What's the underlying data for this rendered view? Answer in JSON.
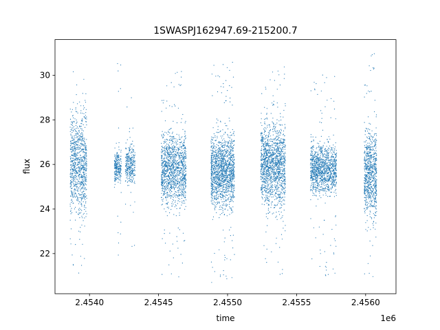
{
  "chart_data": {
    "type": "scatter",
    "title": "1SWASPJ162947.69-215200.7",
    "xlabel": "time",
    "ylabel": "flux",
    "x_offset_label": "1e6",
    "xlim": [
      2453750,
      2456220
    ],
    "ylim": [
      20.2,
      31.6
    ],
    "x_ticks": [
      {
        "value": 2454000,
        "label": "2.4540"
      },
      {
        "value": 2454500,
        "label": "2.4545"
      },
      {
        "value": 2455000,
        "label": "2.4550"
      },
      {
        "value": 2455500,
        "label": "2.4555"
      },
      {
        "value": 2456000,
        "label": "2.4560"
      }
    ],
    "y_ticks": [
      {
        "value": 22,
        "label": "22"
      },
      {
        "value": 24,
        "label": "24"
      },
      {
        "value": 26,
        "label": "26"
      },
      {
        "value": 28,
        "label": "28"
      },
      {
        "value": 30,
        "label": "30"
      }
    ],
    "grid": false,
    "marker_color": "#1f77b4",
    "series": [
      {
        "segments": [
          {
            "x_start": 2453860,
            "x_end": 2453980,
            "y_center": 26.0,
            "y_core_halfwidth": 1.8,
            "y_min": 20.9,
            "y_max": 30.8,
            "points": 900
          },
          {
            "x_start": 2454180,
            "x_end": 2454230,
            "y_center": 25.9,
            "y_core_halfwidth": 0.6,
            "y_min": 21.8,
            "y_max": 30.8,
            "points": 260
          },
          {
            "x_start": 2454260,
            "x_end": 2454330,
            "y_center": 26.0,
            "y_core_halfwidth": 0.7,
            "y_min": 22.2,
            "y_max": 29.3,
            "points": 300
          },
          {
            "x_start": 2454520,
            "x_end": 2454700,
            "y_center": 25.8,
            "y_core_halfwidth": 1.3,
            "y_min": 20.8,
            "y_max": 30.2,
            "points": 1300
          },
          {
            "x_start": 2454880,
            "x_end": 2455050,
            "y_center": 25.7,
            "y_core_halfwidth": 1.3,
            "y_min": 20.7,
            "y_max": 30.6,
            "points": 1500
          },
          {
            "x_start": 2455240,
            "x_end": 2455420,
            "y_center": 26.0,
            "y_core_halfwidth": 1.5,
            "y_min": 20.9,
            "y_max": 30.4,
            "points": 1500
          },
          {
            "x_start": 2455600,
            "x_end": 2455790,
            "y_center": 25.8,
            "y_core_halfwidth": 0.9,
            "y_min": 20.9,
            "y_max": 30.3,
            "points": 1200
          },
          {
            "x_start": 2455990,
            "x_end": 2456080,
            "y_center": 25.6,
            "y_core_halfwidth": 1.6,
            "y_min": 20.8,
            "y_max": 31.0,
            "points": 800
          }
        ]
      }
    ]
  }
}
